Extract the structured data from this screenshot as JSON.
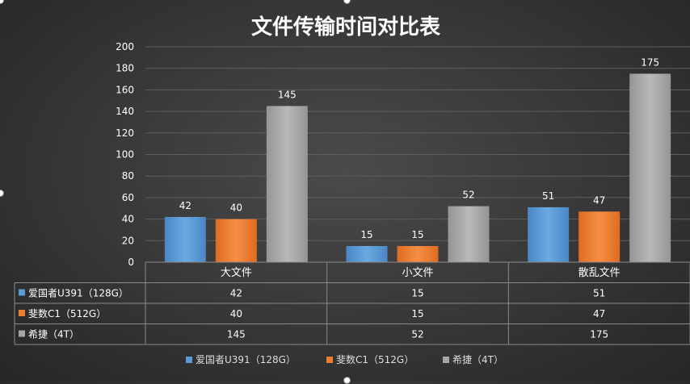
{
  "chart_data": {
    "type": "bar",
    "title": "文件传输时间对比表",
    "categories": [
      "大文件",
      "小文件",
      "散乱文件"
    ],
    "series": [
      {
        "name": "爱国者U391（128G）",
        "color": "#5b9bd5",
        "values": [
          42,
          15,
          51
        ]
      },
      {
        "name": "斐数C1（512G）",
        "color": "#ed7d31",
        "values": [
          40,
          15,
          47
        ]
      },
      {
        "name": "希捷（4T）",
        "color": "#a5a5a5",
        "values": [
          145,
          52,
          175
        ]
      }
    ],
    "ylim": [
      0,
      200
    ],
    "yticks": [
      0,
      20,
      40,
      60,
      80,
      100,
      120,
      140,
      160,
      180,
      200
    ],
    "grid": true,
    "data_table": true,
    "legend": "bottom"
  }
}
